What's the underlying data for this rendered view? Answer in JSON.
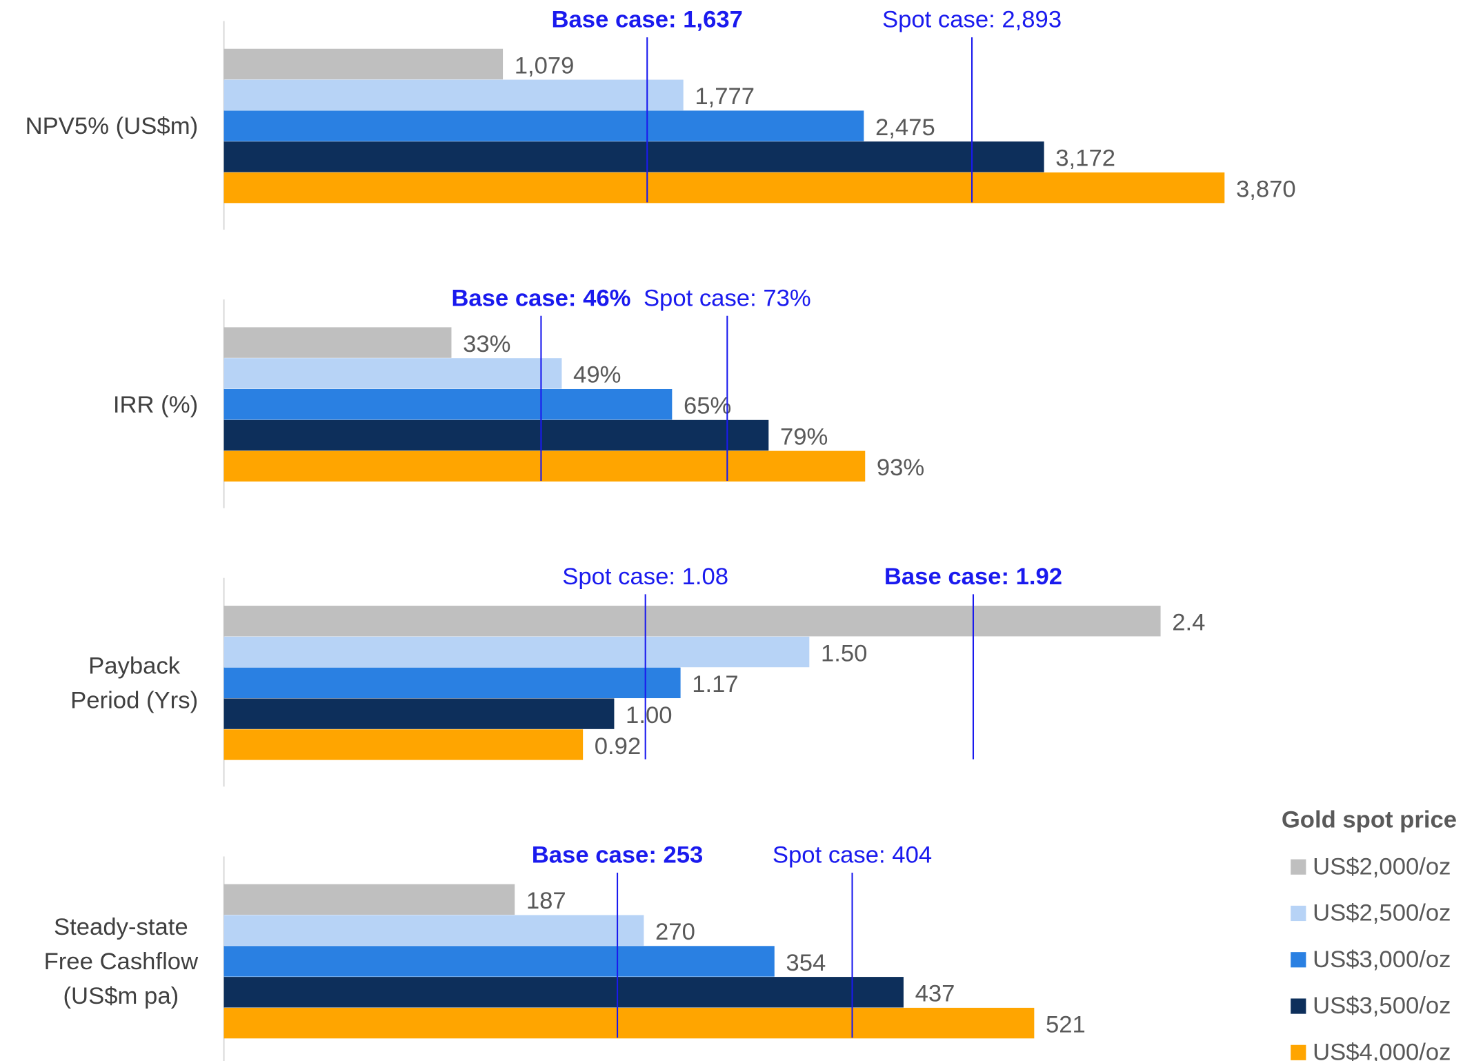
{
  "chart_data": {
    "type": "bar",
    "orientation": "horizontal",
    "categories": [
      "NPV5% (US$m)",
      "IRR (%)",
      "Payback\nPeriod (Yrs)",
      "Steady-state\nFree Cashflow\n(US$m pa)"
    ],
    "xlims": [
      [
        0,
        4000
      ],
      [
        0,
        150
      ],
      [
        0,
        2.65
      ],
      [
        0,
        665
      ]
    ],
    "legend_title": "Gold spot price",
    "legend": "right",
    "series": [
      {
        "name": "US$2,000/oz",
        "color": "#bfbfbf",
        "values": [
          1079,
          33,
          2.4,
          187
        ],
        "value_labels": [
          "1,079",
          "33%",
          "2.4",
          "187"
        ]
      },
      {
        "name": "US$2,500/oz",
        "color": "#b7d3f6",
        "values": [
          1777,
          49,
          1.5,
          270
        ],
        "value_labels": [
          "1,777",
          "49%",
          "1.50",
          "270"
        ]
      },
      {
        "name": "US$3,000/oz",
        "color": "#2a80e2",
        "values": [
          2475,
          65,
          1.17,
          354
        ],
        "value_labels": [
          "2,475",
          "65%",
          "1.17",
          "354"
        ]
      },
      {
        "name": "US$3,500/oz",
        "color": "#0d2f5b",
        "values": [
          3172,
          79,
          1.0,
          437
        ],
        "value_labels": [
          "3,172",
          "79%",
          "1.00",
          "437"
        ]
      },
      {
        "name": "US$4,000/oz",
        "color": "#ffa500",
        "values": [
          3870,
          93,
          0.92,
          521
        ],
        "value_labels": [
          "3,870",
          "93%",
          "0.92",
          "521"
        ]
      }
    ],
    "reference_color": "#1a1aee",
    "reference_lines": [
      [
        {
          "label": "Base case: 1,637",
          "value": 1637,
          "bold": true
        },
        {
          "label": "Spot case: 2,893",
          "value": 2893,
          "bold": false
        }
      ],
      [
        {
          "label": "Base case: 46%",
          "value": 46,
          "bold": true
        },
        {
          "label": "Spot case: 73%",
          "value": 73,
          "bold": false
        }
      ],
      [
        {
          "label": "Spot case: 1.08",
          "value": 1.08,
          "bold": false
        },
        {
          "label": "Base case: 1.92",
          "value": 1.92,
          "bold": true
        }
      ],
      [
        {
          "label": "Base case: 253",
          "value": 253,
          "bold": true
        },
        {
          "label": "Spot case: 404",
          "value": 404,
          "bold": false
        }
      ]
    ]
  }
}
